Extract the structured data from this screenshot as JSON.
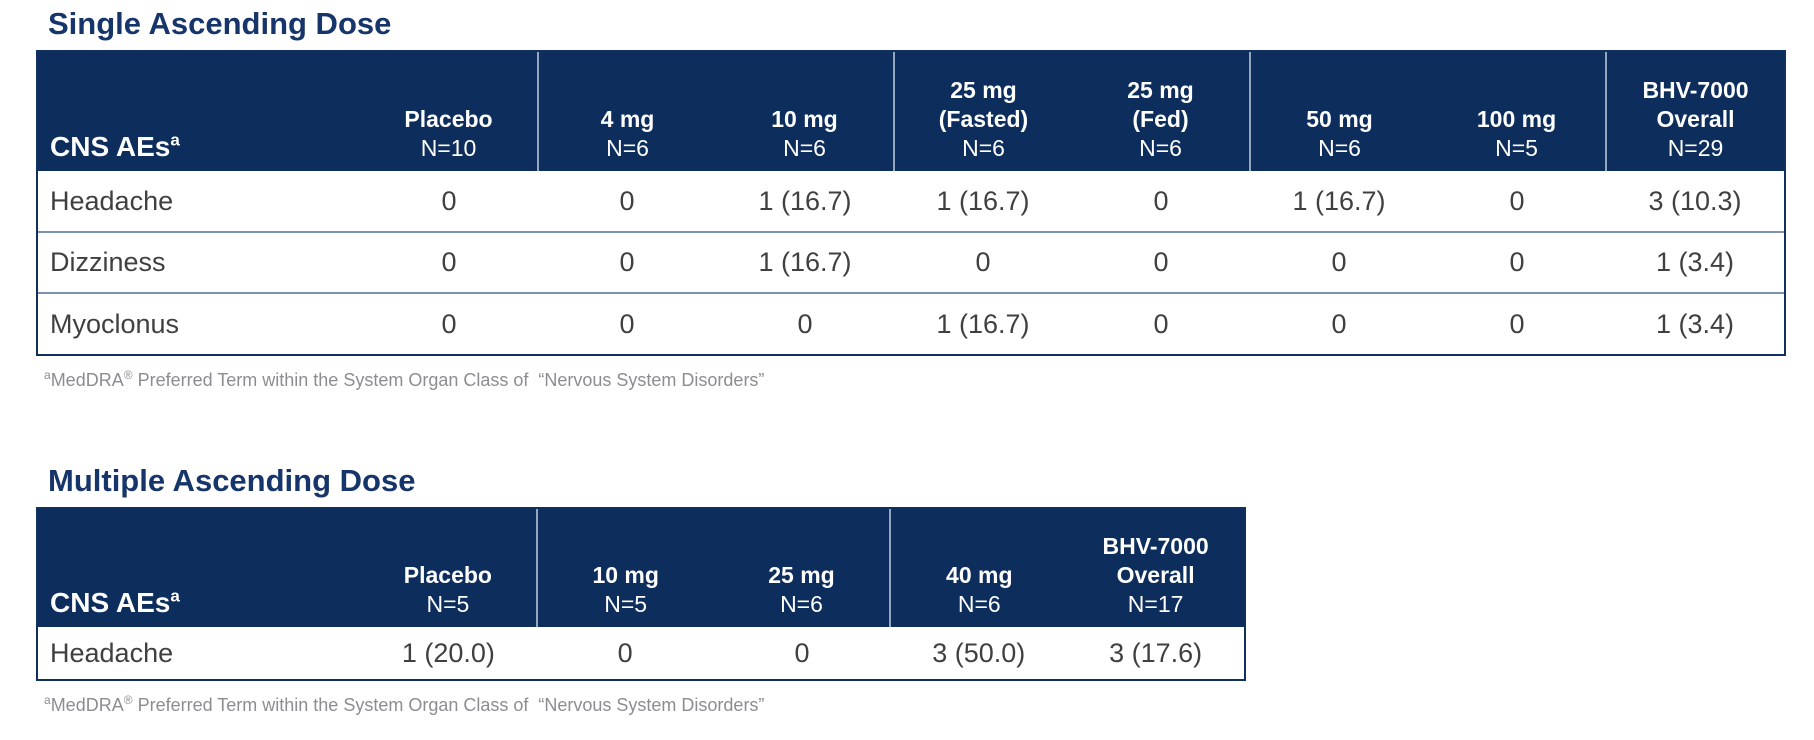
{
  "colors": {
    "header_bg": "#0d2e5c",
    "title": "#16356b",
    "body_text": "#3f4040",
    "footnote": "#8c8d90",
    "row_divider": "#7c90b0",
    "header_divider": "#94a5c0",
    "table_border": "#10305f"
  },
  "sections": [
    {
      "title": "Single Ascending Dose",
      "table": {
        "label_header": {
          "text": "CNS AEs",
          "sup": "a"
        },
        "columns": [
          {
            "lines": [
              "Placebo"
            ],
            "n": "N=10",
            "divider_after": true
          },
          {
            "lines": [
              "4 mg"
            ],
            "n": "N=6",
            "divider_after": false
          },
          {
            "lines": [
              "10 mg"
            ],
            "n": "N=6",
            "divider_after": true
          },
          {
            "lines": [
              "25 mg",
              "(Fasted)"
            ],
            "n": "N=6",
            "divider_after": false
          },
          {
            "lines": [
              "25 mg",
              "(Fed)"
            ],
            "n": "N=6",
            "divider_after": true
          },
          {
            "lines": [
              "50 mg"
            ],
            "n": "N=6",
            "divider_after": false
          },
          {
            "lines": [
              "100 mg"
            ],
            "n": "N=5",
            "divider_after": true
          },
          {
            "lines": [
              "BHV-7000",
              "Overall"
            ],
            "n": "N=29",
            "divider_after": false
          }
        ],
        "rows": [
          {
            "label": "Headache",
            "values": [
              "0",
              "0",
              "1 (16.7)",
              "1 (16.7)",
              "0",
              "1 (16.7)",
              "0",
              "3 (10.3)"
            ]
          },
          {
            "label": "Dizziness",
            "values": [
              "0",
              "0",
              "1 (16.7)",
              "0",
              "0",
              "0",
              "0",
              "1 (3.4)"
            ]
          },
          {
            "label": "Myoclonus",
            "values": [
              "0",
              "0",
              "0",
              "1 (16.7)",
              "0",
              "0",
              "0",
              "1 (3.4)"
            ]
          }
        ]
      },
      "footnote": {
        "sup": "a",
        "brand": "MedDRA",
        "reg": "®",
        "rest": " Preferred Term within the System Organ Class of  “Nervous System Disorders”"
      }
    },
    {
      "title": "Multiple Ascending Dose",
      "table": {
        "label_header": {
          "text": "CNS AEs",
          "sup": "a"
        },
        "columns": [
          {
            "lines": [
              "Placebo"
            ],
            "n": "N=5",
            "divider_after": true
          },
          {
            "lines": [
              "10 mg"
            ],
            "n": "N=5",
            "divider_after": false
          },
          {
            "lines": [
              "25 mg"
            ],
            "n": "N=6",
            "divider_after": true
          },
          {
            "lines": [
              "40 mg"
            ],
            "n": "N=6",
            "divider_after": false
          },
          {
            "lines": [
              "BHV-7000",
              "Overall"
            ],
            "n": "N=17",
            "divider_after": false
          }
        ],
        "rows": [
          {
            "label": "Headache",
            "values": [
              "1 (20.0)",
              "0",
              "0",
              "3 (50.0)",
              "3 (17.6)"
            ]
          }
        ]
      },
      "footnote": {
        "sup": "a",
        "brand": "MedDRA",
        "reg": "®",
        "rest": " Preferred Term within the System Organ Class of  “Nervous System Disorders”"
      }
    }
  ]
}
